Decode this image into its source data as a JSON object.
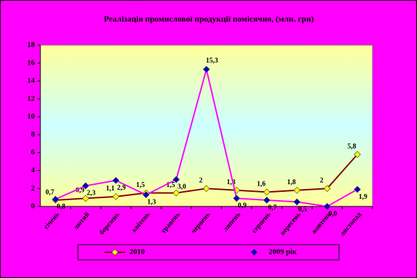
{
  "chart_data": {
    "type": "line",
    "title": "Реалізація промислової продукції помісячно, (млн. грн)",
    "categories": [
      "січень",
      "лютий",
      "березень",
      "квітень",
      "травень",
      "червень",
      "липень",
      "серпень",
      "вересень",
      "жовтень",
      "листопад"
    ],
    "series": [
      {
        "name": "2010",
        "color": "#800000",
        "marker_color": "#ffff00",
        "values": [
          0.7,
          0.9,
          1.1,
          1.5,
          1.5,
          2,
          1.8,
          1.6,
          1.8,
          2,
          5.8
        ],
        "value_labels": [
          "0,7",
          "0,9",
          "1,1",
          "1,5",
          "1,5",
          "2",
          "1,8",
          "1,6",
          "1,8",
          "2",
          "5,8"
        ]
      },
      {
        "name": "2009 рік",
        "color": "#ff00ff",
        "marker_color": "#0000cc",
        "values": [
          0.8,
          2.3,
          2.9,
          1.3,
          3.0,
          15.3,
          0.9,
          0.7,
          0.5,
          0.0,
          1.9
        ],
        "value_labels": [
          "0,8",
          "2,3",
          "2,9",
          "1,3",
          "3,0",
          "15,3",
          "0,9",
          "0,7",
          "0,5",
          "0,0",
          "1,9"
        ]
      }
    ],
    "ylim": [
      0,
      18
    ],
    "yticks": [
      0,
      2,
      4,
      6,
      8,
      10,
      12,
      14,
      16,
      18
    ],
    "grid": false,
    "legend": "bottom"
  }
}
